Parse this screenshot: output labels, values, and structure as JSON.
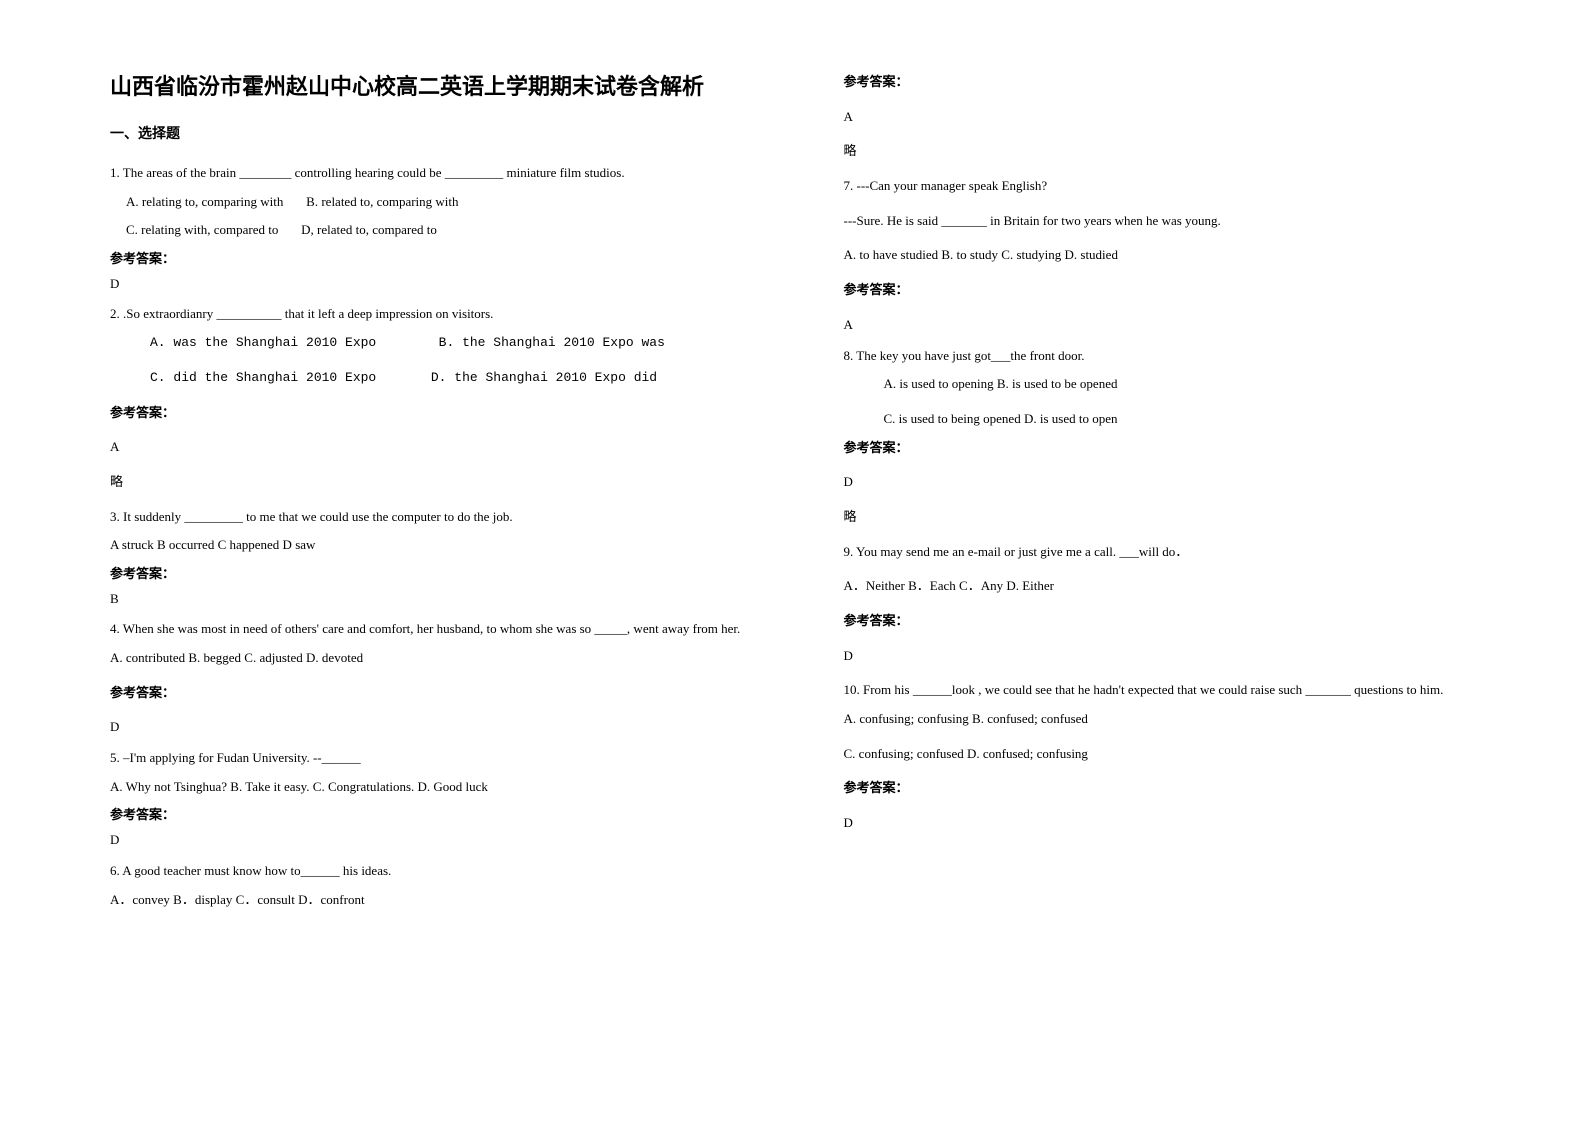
{
  "title": "山西省临汾市霍州赵山中心校高二英语上学期期末试卷含解析",
  "section1": "一、选择题",
  "q1": {
    "text": "1. The areas of the brain ________ controlling hearing could be _________ miniature film studios.",
    "oA": "A. relating to, comparing with",
    "oB": "B. related to, comparing with",
    "oC": "C. relating with, compared to",
    "oD": "D, related to, compared to",
    "ansLabel": "参考答案：",
    "ans": "D"
  },
  "q2": {
    "text": "2. .So extraordianry __________ that it left a deep impression on visitors.",
    "row1a": "A. was the Shanghai 2010 Expo",
    "row1b": "B. the Shanghai 2010 Expo was",
    "row2a": "C. did the Shanghai 2010 Expo",
    "row2b": "D. the Shanghai 2010 Expo did",
    "ansLabel": "参考答案：",
    "ans": "A",
    "note": "略"
  },
  "q3": {
    "text": "3. It suddenly _________ to me that we could use the computer to do the job.",
    "opts": "A struck  B occurred  C happened  D saw",
    "ansLabel": "参考答案：",
    "ans": "B"
  },
  "q4": {
    "text": "4. When she was most in need of others' care and comfort, her husband, to whom she was so _____, went away from her.",
    "opts": " A. contributed       B. begged         C. adjusted        D. devoted",
    "ansLabel": "参考答案：",
    "ans": "D"
  },
  "q5": {
    "text": "5. –I'm applying for Fudan University.   --______",
    "opts": " A. Why not Tsinghua?    B. Take it easy.          C. Congratulations.          D. Good luck",
    "ansLabel": "参考答案：",
    "ans": "D"
  },
  "q6": {
    "text": "6. A good teacher must know how to______ his ideas.",
    "opts": " A．convey               B．display              C．consult              D．confront",
    "ansLabel": "参考答案：",
    "ans": "A",
    "note": "略"
  },
  "q7": {
    "line1": "7. ---Can your manager speak English?",
    "line2": "---Sure. He is said _______ in Britain for two years when he was young.",
    "opts": "  A. to have studied    B. to study    C. studying    D. studied",
    "ansLabel": "参考答案：",
    "ans": "A"
  },
  "q8": {
    "text": "8. The key you have just got___the front door.",
    "row1": "A. is used to opening          B. is used to be opened",
    "row2": "C. is used to being opened     D. is used to open",
    "ansLabel": "参考答案：",
    "ans": "D",
    "note": "略"
  },
  "q9": {
    "text": "9. You may send me an e-mail or just give me a call. ___will do．",
    "opts": "A．Neither    B．Each    C．Any    D. Either",
    "ansLabel": "参考答案：",
    "ans": "D"
  },
  "q10": {
    "text": "10. From his ______look , we could see that he hadn't expected that we could raise such _______ questions to him.",
    "row1": "A. confusing; confusing            B. confused; confused",
    "row2": "C. confusing; confused             D. confused; confusing",
    "ansLabel": "参考答案：",
    "ans": "D"
  }
}
